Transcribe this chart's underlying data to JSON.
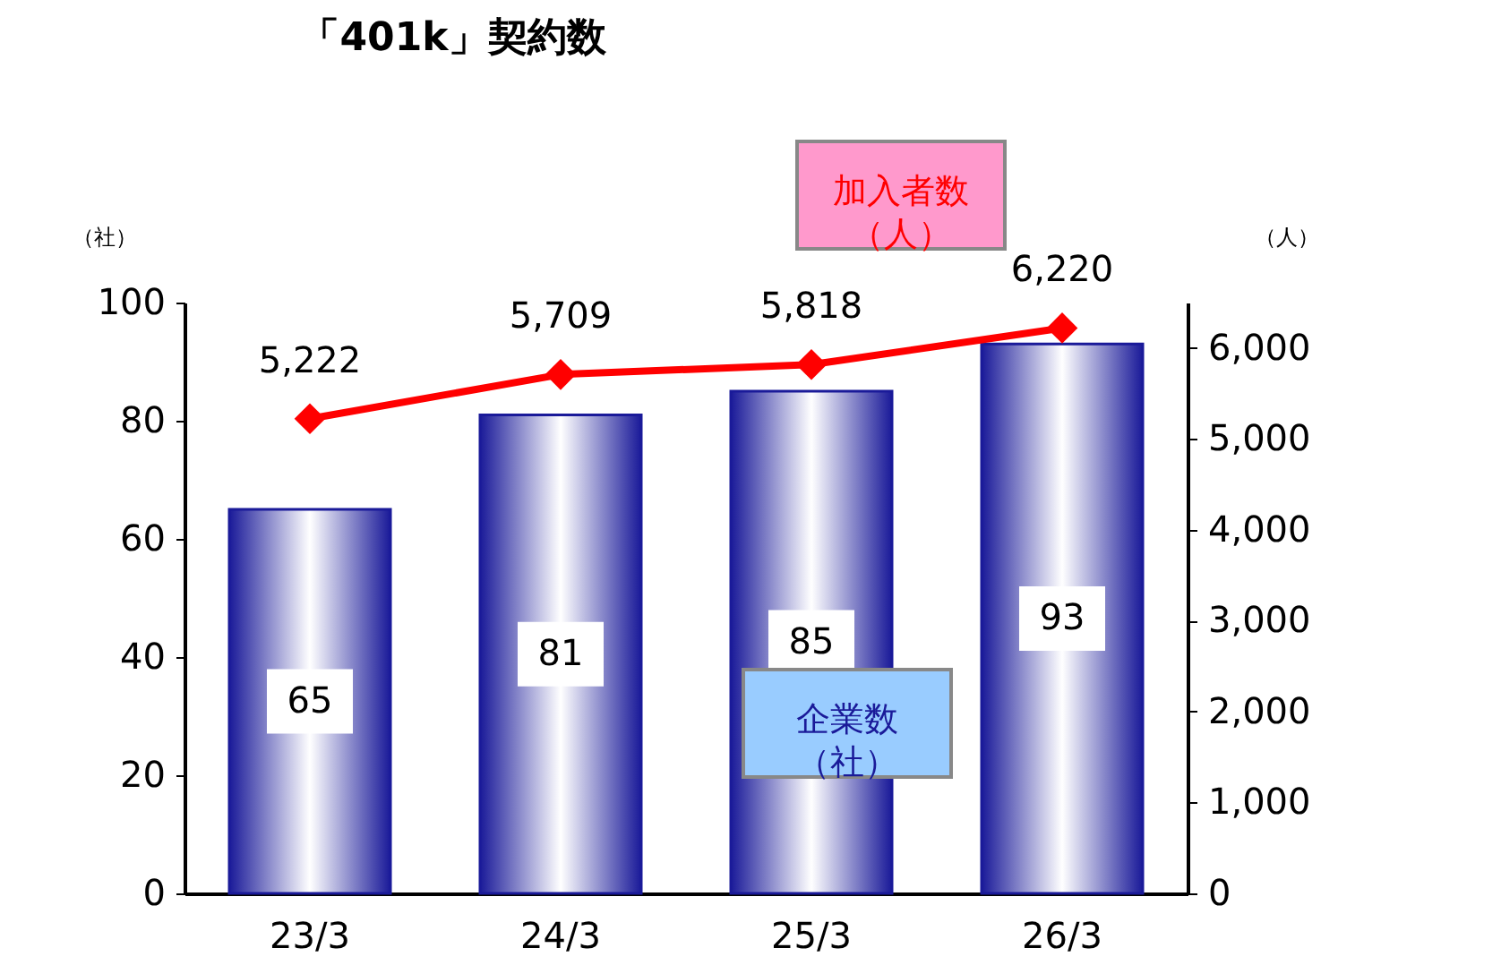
{
  "chart_data": {
    "type": "bar",
    "title": "「401k」契約数",
    "categories": [
      "23/3",
      "24/3",
      "25/3",
      "26/3"
    ],
    "series": [
      {
        "name": "企業数（社）",
        "axis": "y",
        "color": "#1a1a99",
        "values": [
          65,
          81,
          85,
          93
        ]
      },
      {
        "name": "加入者数（人）",
        "type": "line",
        "axis": "y2",
        "color": "#ff0000",
        "values": [
          5222,
          5709,
          5818,
          6220
        ],
        "value_labels": [
          "5,222",
          "5,709",
          "5,818",
          "6,220"
        ]
      }
    ],
    "ylabel": "（社）",
    "y2label": "（人）",
    "ylim": [
      0,
      100
    ],
    "yticks": [
      0,
      20,
      40,
      60,
      80,
      100
    ],
    "y2lim": [
      0,
      6500
    ],
    "y2ticks": [
      0,
      {
        "value": 1000,
        "label": "1,000"
      },
      {
        "value": 2000,
        "label": "2,000"
      },
      {
        "value": 3000,
        "label": "3,000"
      },
      {
        "value": 4000,
        "label": "4,000"
      },
      {
        "value": 5000,
        "label": "5,000"
      },
      {
        "value": 6000,
        "label": "6,000"
      }
    ],
    "data_labels": true,
    "marker": "diamond",
    "line_style": "solid",
    "grid": false
  }
}
